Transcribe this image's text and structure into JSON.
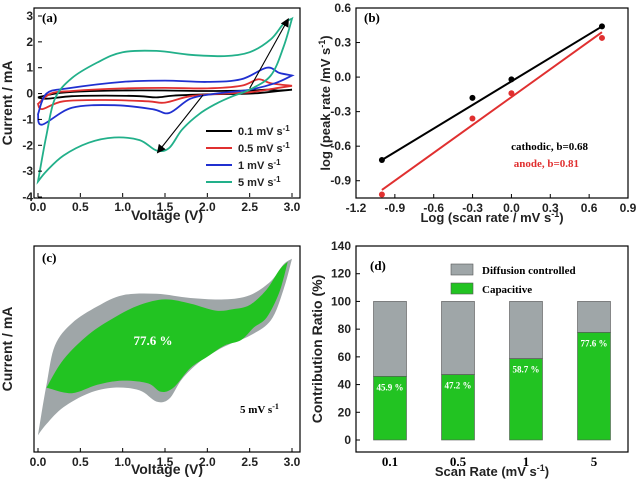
{
  "chart_data": [
    {
      "panel": "(a)",
      "type": "line",
      "xlabel": "Voltage (V)",
      "ylabel": "Current / mA",
      "xlim": [
        0,
        3.0
      ],
      "ylim": [
        -4,
        3
      ],
      "xticks": [
        "0.0",
        "0.5",
        "1.0",
        "1.5",
        "2.0",
        "2.5",
        "3.0"
      ],
      "yticks": [
        "-4",
        "-3",
        "-2",
        "-1",
        "0",
        "1",
        "2",
        "3"
      ],
      "legend_position": "bottom-right",
      "series": [
        {
          "name": "0.1 mV s-1",
          "label_main": "0.1 mV s",
          "label_sup": "-1",
          "color": "#000000",
          "upper": [
            [
              0,
              -0.15
            ],
            [
              0.2,
              0.0
            ],
            [
              0.5,
              0.08
            ],
            [
              1,
              0.12
            ],
            [
              1.5,
              0.12
            ],
            [
              2,
              0.1
            ],
            [
              2.5,
              0.12
            ],
            [
              2.7,
              0.15
            ],
            [
              2.85,
              0.12
            ],
            [
              3,
              0.15
            ]
          ],
          "lower": [
            [
              3,
              0.15
            ],
            [
              2.7,
              0.05
            ],
            [
              2.5,
              0.0
            ],
            [
              2,
              -0.03
            ],
            [
              1.6,
              -0.08
            ],
            [
              1.4,
              -0.15
            ],
            [
              1.2,
              -0.1
            ],
            [
              0.8,
              -0.08
            ],
            [
              0.4,
              -0.1
            ],
            [
              0.1,
              -0.2
            ],
            [
              0,
              -0.15
            ]
          ]
        },
        {
          "name": "0.5 mV s-1",
          "label_main": "0.5 mV s",
          "label_sup": "-1",
          "color": "#e03030",
          "upper": [
            [
              0,
              -0.4
            ],
            [
              0.15,
              0.0
            ],
            [
              0.4,
              0.1
            ],
            [
              1,
              0.2
            ],
            [
              1.5,
              0.22
            ],
            [
              2,
              0.2
            ],
            [
              2.4,
              0.3
            ],
            [
              2.6,
              0.55
            ],
            [
              2.75,
              0.4
            ],
            [
              3,
              0.3
            ]
          ],
          "lower": [
            [
              3,
              0.3
            ],
            [
              2.8,
              0.2
            ],
            [
              2.5,
              0.05
            ],
            [
              2.2,
              0.0
            ],
            [
              1.8,
              -0.1
            ],
            [
              1.5,
              -0.35
            ],
            [
              1.3,
              -0.3
            ],
            [
              0.8,
              -0.25
            ],
            [
              0.3,
              -0.3
            ],
            [
              0.05,
              -0.6
            ],
            [
              0,
              -0.4
            ]
          ]
        },
        {
          "name": "1 mV s-1",
          "label_main": "1 mV s",
          "label_sup": "-1",
          "color": "#2030d0",
          "upper": [
            [
              0,
              -0.8
            ],
            [
              0.1,
              0.0
            ],
            [
              0.35,
              0.2
            ],
            [
              1,
              0.45
            ],
            [
              1.5,
              0.5
            ],
            [
              2,
              0.45
            ],
            [
              2.4,
              0.55
            ],
            [
              2.7,
              1.0
            ],
            [
              2.85,
              0.8
            ],
            [
              3,
              0.7
            ]
          ],
          "lower": [
            [
              3,
              0.7
            ],
            [
              2.8,
              0.4
            ],
            [
              2.5,
              0.15
            ],
            [
              2.1,
              0.0
            ],
            [
              1.8,
              -0.2
            ],
            [
              1.55,
              -0.75
            ],
            [
              1.35,
              -0.6
            ],
            [
              0.9,
              -0.45
            ],
            [
              0.4,
              -0.55
            ],
            [
              0.05,
              -1.2
            ],
            [
              0,
              -0.8
            ]
          ]
        },
        {
          "name": "5 mV s-1",
          "label_main": "5 mV s",
          "label_sup": "-1",
          "color": "#22b08a",
          "upper": [
            [
              0,
              -3.4
            ],
            [
              0.1,
              -1.6
            ],
            [
              0.2,
              -0.2
            ],
            [
              0.4,
              0.6
            ],
            [
              0.7,
              1.2
            ],
            [
              1.0,
              1.6
            ],
            [
              1.4,
              1.65
            ],
            [
              1.8,
              1.5
            ],
            [
              2.2,
              1.45
            ],
            [
              2.5,
              1.6
            ],
            [
              2.75,
              2.1
            ],
            [
              2.9,
              2.7
            ],
            [
              3,
              2.9
            ]
          ],
          "lower": [
            [
              3,
              2.9
            ],
            [
              2.9,
              1.8
            ],
            [
              2.75,
              0.7
            ],
            [
              2.5,
              0.15
            ],
            [
              2.3,
              -0.1
            ],
            [
              2.1,
              -0.4
            ],
            [
              1.9,
              -0.8
            ],
            [
              1.7,
              -1.4
            ],
            [
              1.55,
              -2.1
            ],
            [
              1.4,
              -2.2
            ],
            [
              1.2,
              -1.8
            ],
            [
              0.9,
              -1.7
            ],
            [
              0.6,
              -1.9
            ],
            [
              0.3,
              -2.4
            ],
            [
              0.1,
              -3.0
            ],
            [
              0,
              -3.4
            ]
          ]
        }
      ],
      "arrows": [
        {
          "from": [
            2.5,
            0.2
          ],
          "to": [
            2.95,
            2.85
          ]
        },
        {
          "from": [
            1.95,
            -0.05
          ],
          "to": [
            1.42,
            -2.25
          ]
        }
      ]
    },
    {
      "panel": "(b)",
      "type": "scatter",
      "xlabel": "Log (scan rate / mV s-1)",
      "xlabel_main": "Log (scan rate / mV s",
      "xlabel_sup": "-1",
      "xlabel_end": ")",
      "ylabel": "log (peak rate /mV s-1)",
      "ylabel_main": "log (peak rate /mV s",
      "ylabel_sup": "-1",
      "ylabel_end": ")",
      "xlim": [
        -1.2,
        0.9
      ],
      "ylim": [
        -1.05,
        0.6
      ],
      "xticks": [
        "-1.2",
        "-0.9",
        "-0.6",
        "-0.3",
        "0.0",
        "0.3",
        "0.6",
        "0.9"
      ],
      "yticks": [
        "-0.9",
        "-0.6",
        "-0.3",
        "0.0",
        "0.3",
        "0.6"
      ],
      "series": [
        {
          "name": "cathodic, b=0.68",
          "color": "#000000",
          "x": [
            -1.0,
            -0.301,
            0.0,
            0.699
          ],
          "y": [
            -0.72,
            -0.18,
            -0.02,
            0.44
          ],
          "fit": [
            [
              -1.0,
              -0.72
            ],
            [
              0.699,
              0.44
            ]
          ]
        },
        {
          "name": "anode, b=0.81",
          "color": "#e03030",
          "x": [
            -1.0,
            -0.301,
            0.0,
            0.699
          ],
          "y": [
            -1.02,
            -0.36,
            -0.14,
            0.34
          ],
          "fit": [
            [
              -1.0,
              -0.98
            ],
            [
              0.699,
              0.39
            ]
          ]
        }
      ]
    },
    {
      "panel": "(c)",
      "type": "area",
      "xlabel": "Voltage (V)",
      "ylabel": "Current / mA",
      "xlim": [
        0,
        3.0
      ],
      "ylim": [
        -4,
        3
      ],
      "xticks": [
        "0.0",
        "0.5",
        "1.0",
        "1.5",
        "2.0",
        "2.5",
        "3.0"
      ],
      "annotation": "77.6 %",
      "scan_label_main": "5 mV s",
      "scan_label_sup": "-1",
      "total_color": "#9fa6a8",
      "capacitive_color": "#22c322",
      "total": {
        "upper": [
          [
            0,
            -3.4
          ],
          [
            0.1,
            -1.6
          ],
          [
            0.2,
            -0.2
          ],
          [
            0.4,
            0.6
          ],
          [
            0.7,
            1.2
          ],
          [
            1.0,
            1.6
          ],
          [
            1.4,
            1.65
          ],
          [
            1.8,
            1.5
          ],
          [
            2.2,
            1.45
          ],
          [
            2.5,
            1.6
          ],
          [
            2.75,
            2.1
          ],
          [
            2.9,
            2.7
          ],
          [
            3,
            2.9
          ]
        ],
        "lower": [
          [
            3,
            2.9
          ],
          [
            2.9,
            1.8
          ],
          [
            2.75,
            0.7
          ],
          [
            2.5,
            0.15
          ],
          [
            2.3,
            -0.1
          ],
          [
            2.1,
            -0.4
          ],
          [
            1.9,
            -0.8
          ],
          [
            1.7,
            -1.4
          ],
          [
            1.55,
            -2.1
          ],
          [
            1.4,
            -2.2
          ],
          [
            1.2,
            -1.8
          ],
          [
            0.9,
            -1.7
          ],
          [
            0.6,
            -1.9
          ],
          [
            0.3,
            -2.4
          ],
          [
            0.1,
            -3.0
          ],
          [
            0,
            -3.4
          ]
        ]
      },
      "capacitive": {
        "upper": [
          [
            0.1,
            -1.7
          ],
          [
            0.3,
            -0.7
          ],
          [
            0.6,
            0.2
          ],
          [
            0.9,
            0.8
          ],
          [
            1.2,
            1.25
          ],
          [
            1.5,
            1.45
          ],
          [
            1.8,
            1.3
          ],
          [
            2.1,
            1.05
          ],
          [
            2.3,
            1.1
          ],
          [
            2.5,
            1.25
          ],
          [
            2.7,
            1.8
          ],
          [
            2.85,
            2.5
          ],
          [
            2.95,
            2.8
          ]
        ],
        "lower": [
          [
            2.95,
            2.8
          ],
          [
            2.85,
            1.7
          ],
          [
            2.7,
            0.8
          ],
          [
            2.55,
            0.45
          ],
          [
            2.4,
            0.0
          ],
          [
            2.2,
            -0.2
          ],
          [
            2.0,
            -0.6
          ],
          [
            1.8,
            -1.0
          ],
          [
            1.6,
            -1.7
          ],
          [
            1.45,
            -1.85
          ],
          [
            1.3,
            -1.55
          ],
          [
            1.0,
            -1.45
          ],
          [
            0.7,
            -1.6
          ],
          [
            0.4,
            -1.9
          ],
          [
            0.1,
            -1.7
          ]
        ]
      }
    },
    {
      "panel": "(d)",
      "type": "bar",
      "stacked": true,
      "xlabel": "Scan Rate (mV s-1)",
      "xlabel_main": "Scan Rate (mV s",
      "xlabel_sup": "-1",
      "xlabel_end": ")",
      "ylabel": "Contribution Ratio (%)",
      "categories": [
        "0.1",
        "0.5",
        "1",
        "5"
      ],
      "ylim": [
        0,
        140
      ],
      "yticks": [
        "0",
        "20",
        "40",
        "60",
        "80",
        "100",
        "120",
        "140"
      ],
      "legend_position": "top-right",
      "series": [
        {
          "name": "Capacitive",
          "color": "#22c322",
          "values": [
            45.9,
            47.2,
            58.7,
            77.6
          ]
        },
        {
          "name": "Diffusion controlled",
          "color": "#9fa6a8",
          "values": [
            54.1,
            52.8,
            41.3,
            22.4
          ]
        }
      ],
      "value_labels": [
        "45.9 %",
        "47.2 %",
        "58.7 %",
        "77.6 %"
      ]
    }
  ]
}
